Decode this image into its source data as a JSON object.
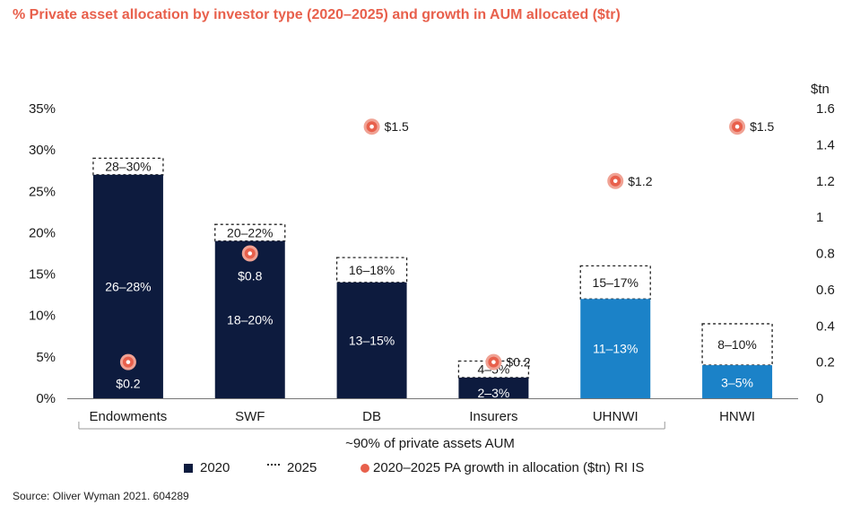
{
  "title": "% Private asset allocation by investor type (2020–2025) and growth in AUM allocated ($tr)",
  "chart_data": {
    "type": "bar",
    "categories": [
      "Endowments",
      "SWF",
      "DB",
      "Insurers",
      "UHNWI",
      "HNWI"
    ],
    "series": [
      {
        "name": "2020",
        "values": [
          27,
          19,
          14,
          2.5,
          12,
          4
        ],
        "labels": [
          "26–28%",
          "18–20%",
          "13–15%",
          "2–3%",
          "11–13%",
          "3–5%"
        ],
        "colors": [
          "#0d1b3e",
          "#0d1b3e",
          "#0d1b3e",
          "#0d1b3e",
          "#1b82c8",
          "#1b82c8"
        ]
      },
      {
        "name": "2025",
        "values": [
          29,
          21,
          17,
          4.5,
          16,
          9
        ],
        "labels": [
          "28–30%",
          "20–22%",
          "16–18%",
          "4–5%",
          "15–17%",
          "8–10%"
        ]
      },
      {
        "name": "2020–2025 PA growth in allocation ($tn) RI IS",
        "axis": "right",
        "values": [
          0.2,
          0.8,
          1.5,
          0.2,
          1.2,
          1.5
        ],
        "labels": [
          "$0.2",
          "$0.8",
          "$1.5",
          "$0.2",
          "$1.2",
          "$1.5"
        ],
        "color": "#e8604c"
      }
    ],
    "y_left": {
      "ticks": [
        "0%",
        "5%",
        "10%",
        "15%",
        "20%",
        "25%",
        "30%",
        "35%"
      ],
      "ylim": [
        0,
        35
      ]
    },
    "y_right": {
      "unit": "$tn",
      "ticks": [
        "0",
        "0.2",
        "0.4",
        "0.6",
        "0.8",
        "1",
        "1.2",
        "1.4",
        "1.6"
      ],
      "ylim": [
        0,
        1.6
      ]
    },
    "bracket_label": "~90% of private assets AUM",
    "legend": [
      "2020",
      "2025",
      "2020–2025 PA growth in allocation ($tn) RI IS"
    ],
    "legend_position": "bottom"
  },
  "source": "Source: Oliver Wyman 2021. 604289"
}
